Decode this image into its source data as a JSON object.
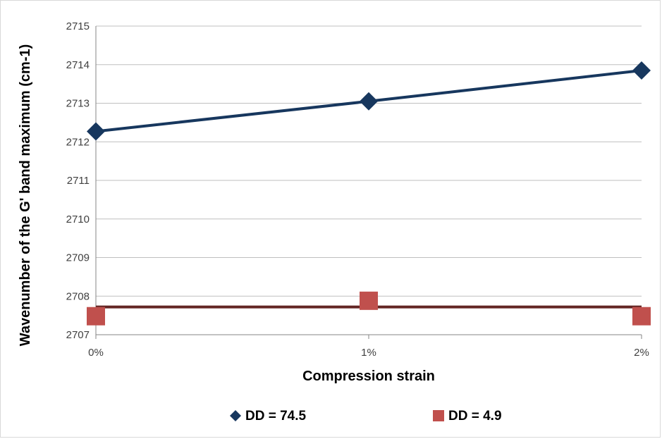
{
  "chart_data": {
    "type": "line",
    "title": "",
    "xlabel": "Compression strain",
    "ylabel": "Wavenumber of the G' band maximum (cm-1)",
    "categories": [
      "0%",
      "1%",
      "2%"
    ],
    "ylim": [
      2707,
      2715
    ],
    "yticks": [
      "2707",
      "2708",
      "2709",
      "2710",
      "2711",
      "2712",
      "2713",
      "2714",
      "2715"
    ],
    "grid": true,
    "legend_position": "bottom",
    "series": [
      {
        "name": "DD = 74.5",
        "values": [
          2712.27,
          2713.05,
          2713.85
        ],
        "marker": "diamond",
        "color": "#17375e",
        "trendline": [
          2712.27,
          2713.05,
          2713.85
        ]
      },
      {
        "name": "DD = 4.9",
        "values": [
          2707.48,
          2707.88,
          2707.48
        ],
        "marker": "square",
        "color": "#c0504d",
        "trendline": [
          2707.72,
          2707.72,
          2707.72
        ],
        "trendline_color": "#632523"
      }
    ]
  }
}
